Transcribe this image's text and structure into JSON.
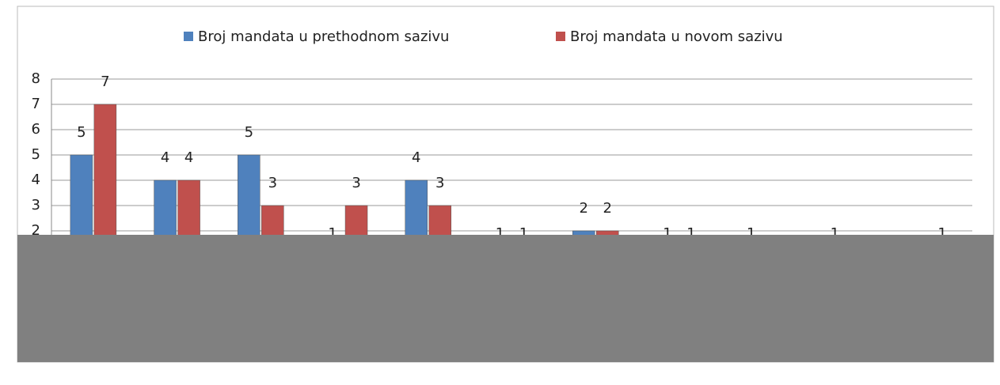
{
  "chart_data": {
    "type": "bar",
    "categories": [
      null,
      null,
      null,
      null,
      null,
      null,
      null,
      null,
      null,
      null,
      null
    ],
    "series": [
      {
        "name": "Broj mandata u prethodnom sazivu",
        "color": "#4f81bd",
        "values": [
          5,
          4,
          5,
          1,
          4,
          1,
          2,
          1,
          1,
          1,
          null
        ]
      },
      {
        "name": "Broj mandata u novom sazivu",
        "color": "#c0504d",
        "values": [
          7,
          4,
          3,
          3,
          3,
          1,
          2,
          1,
          null,
          null,
          1
        ]
      }
    ],
    "ylim": [
      0,
      8
    ],
    "yticks": [
      2,
      3,
      4,
      5,
      6,
      7,
      8
    ],
    "grid": true,
    "legend": "top"
  }
}
